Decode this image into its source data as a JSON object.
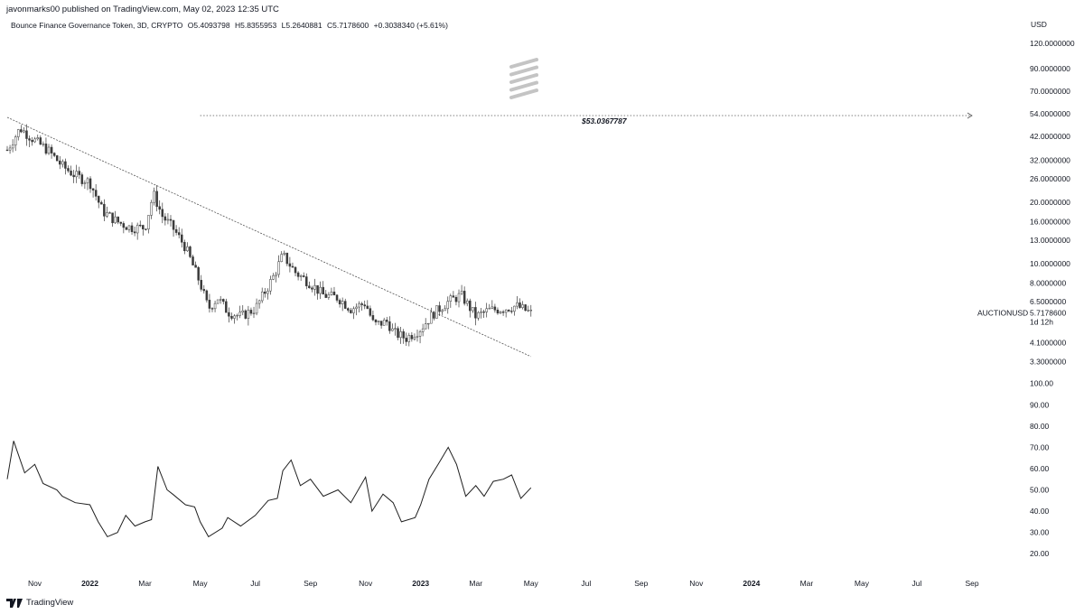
{
  "header": {
    "publisher_text": "javonmarks00 published on TradingView.com, May 02, 2023 12:35 UTC"
  },
  "symbol": {
    "name": "Bounce Finance Governance Token, 3D, CRYPTO",
    "open": "O5.4093798",
    "high": "H5.8355953",
    "low": "L5.2640881",
    "close": "C5.7178600",
    "change": "+0.3038340 (+5.61%)"
  },
  "currency": "USD",
  "brand": "TradingView",
  "colors": {
    "candles": "#3a3a3a",
    "rsi_line": "#1f1f1f",
    "trendline": "#555555",
    "watermark": "#c4c4c4"
  },
  "chart_data": [
    {
      "type": "candlestick",
      "title": "Bounce Finance Governance Token, 3D, CRYPTO",
      "y_scale": "log",
      "ylim": [
        3.0,
        130.0
      ],
      "y_tick_labels": [
        "120.0000000",
        "90.0000000",
        "70.0000000",
        "54.0000000",
        "42.0000000",
        "32.0000000",
        "26.0000000",
        "20.0000000",
        "16.0000000",
        "13.0000000",
        "10.0000000",
        "8.0000000",
        "6.5000000",
        "4.1000000",
        "3.3000000"
      ],
      "y_ticks": [
        120,
        90,
        70,
        54,
        42,
        32,
        26,
        20,
        16,
        13,
        10,
        8,
        6.5,
        4.1,
        3.3
      ],
      "x_tick_labels": [
        "Nov",
        "2022",
        "Mar",
        "May",
        "Jul",
        "Sep",
        "Nov",
        "2023",
        "Mar",
        "May",
        "Jul",
        "Sep",
        "Nov",
        "2024",
        "Mar",
        "May",
        "Jul",
        "Sep"
      ],
      "x_ticks": [
        "2021-11",
        "2022-01",
        "2022-03",
        "2022-05",
        "2022-07",
        "2022-09",
        "2022-11",
        "2023-01",
        "2023-03",
        "2023-05",
        "2023-07",
        "2023-09",
        "2023-11",
        "2024-01",
        "2024-03",
        "2024-05",
        "2024-07",
        "2024-09"
      ],
      "last_price": {
        "symbol": "AUCTIONUSD",
        "value": "5.7178600",
        "countdown": "1d 12h"
      },
      "target_line": {
        "label": "$53.0367787",
        "value": 53.0367787,
        "from": "2022-05",
        "to": "2024-09"
      },
      "trendline": {
        "from": {
          "date": "2021-10",
          "value": 52
        },
        "to": {
          "date": "2023-05",
          "value": 3.5
        }
      },
      "closes": [
        {
          "date": "2021-10",
          "c": 36
        },
        {
          "date": "2021-10-15",
          "c": 46
        },
        {
          "date": "2021-11",
          "c": 40
        },
        {
          "date": "2021-11-15",
          "c": 36
        },
        {
          "date": "2021-12",
          "c": 30
        },
        {
          "date": "2021-12-15",
          "c": 27
        },
        {
          "date": "2022-01",
          "c": 25
        },
        {
          "date": "2022-01-15",
          "c": 18
        },
        {
          "date": "2022-02",
          "c": 16
        },
        {
          "date": "2022-02-15",
          "c": 15
        },
        {
          "date": "2022-03",
          "c": 15
        },
        {
          "date": "2022-03-10",
          "c": 22
        },
        {
          "date": "2022-03-20",
          "c": 17
        },
        {
          "date": "2022-04",
          "c": 15
        },
        {
          "date": "2022-04-15",
          "c": 12
        },
        {
          "date": "2022-05",
          "c": 8
        },
        {
          "date": "2022-05-10",
          "c": 6
        },
        {
          "date": "2022-05-20",
          "c": 6.8
        },
        {
          "date": "2022-06",
          "c": 5.8
        },
        {
          "date": "2022-06-15",
          "c": 5.5
        },
        {
          "date": "2022-07",
          "c": 6
        },
        {
          "date": "2022-07-20",
          "c": 8.5
        },
        {
          "date": "2022-08",
          "c": 11
        },
        {
          "date": "2022-08-15",
          "c": 9
        },
        {
          "date": "2022-09",
          "c": 8
        },
        {
          "date": "2022-09-15",
          "c": 7
        },
        {
          "date": "2022-10",
          "c": 6.8
        },
        {
          "date": "2022-10-15",
          "c": 6
        },
        {
          "date": "2022-11",
          "c": 6.4
        },
        {
          "date": "2022-11-10",
          "c": 5
        },
        {
          "date": "2022-11-25",
          "c": 5.2
        },
        {
          "date": "2022-12",
          "c": 4.6
        },
        {
          "date": "2022-12-15",
          "c": 4.3
        },
        {
          "date": "2023-01",
          "c": 4.8
        },
        {
          "date": "2023-01-15",
          "c": 5.7
        },
        {
          "date": "2023-02",
          "c": 6.5
        },
        {
          "date": "2023-02-15",
          "c": 7
        },
        {
          "date": "2023-03",
          "c": 5.5
        },
        {
          "date": "2023-03-15",
          "c": 5.9
        },
        {
          "date": "2023-04",
          "c": 6
        },
        {
          "date": "2023-04-15",
          "c": 6.2
        },
        {
          "date": "2023-05",
          "c": 5.72
        }
      ]
    },
    {
      "type": "line",
      "y_tick_labels": [
        "100.00",
        "90.00",
        "80.00",
        "70.00",
        "60.00",
        "50.00",
        "40.00",
        "30.00",
        "20.00"
      ],
      "y_ticks": [
        100,
        90,
        80,
        70,
        60,
        50,
        40,
        30,
        20
      ],
      "ylim": [
        15,
        102
      ],
      "series": [
        {
          "values": [
            {
              "date": "2021-10",
              "v": 55
            },
            {
              "date": "2021-10-08",
              "v": 73
            },
            {
              "date": "2021-10-20",
              "v": 58
            },
            {
              "date": "2021-11",
              "v": 62
            },
            {
              "date": "2021-11-10",
              "v": 53
            },
            {
              "date": "2021-11-25",
              "v": 50
            },
            {
              "date": "2021-12",
              "v": 47
            },
            {
              "date": "2021-12-15",
              "v": 44
            },
            {
              "date": "2022-01",
              "v": 43
            },
            {
              "date": "2022-01-10",
              "v": 35
            },
            {
              "date": "2022-01-20",
              "v": 28
            },
            {
              "date": "2022-02",
              "v": 30
            },
            {
              "date": "2022-02-10",
              "v": 38
            },
            {
              "date": "2022-02-20",
              "v": 33
            },
            {
              "date": "2022-03",
              "v": 35
            },
            {
              "date": "2022-03-08",
              "v": 36
            },
            {
              "date": "2022-03-15",
              "v": 61
            },
            {
              "date": "2022-03-25",
              "v": 50
            },
            {
              "date": "2022-04",
              "v": 48
            },
            {
              "date": "2022-04-15",
              "v": 43
            },
            {
              "date": "2022-04-25",
              "v": 42
            },
            {
              "date": "2022-05",
              "v": 35
            },
            {
              "date": "2022-05-10",
              "v": 28
            },
            {
              "date": "2022-05-25",
              "v": 32
            },
            {
              "date": "2022-06",
              "v": 37
            },
            {
              "date": "2022-06-15",
              "v": 33
            },
            {
              "date": "2022-07",
              "v": 38
            },
            {
              "date": "2022-07-15",
              "v": 45
            },
            {
              "date": "2022-07-25",
              "v": 46
            },
            {
              "date": "2022-08",
              "v": 59
            },
            {
              "date": "2022-08-10",
              "v": 64
            },
            {
              "date": "2022-08-20",
              "v": 52
            },
            {
              "date": "2022-09",
              "v": 55
            },
            {
              "date": "2022-09-15",
              "v": 47
            },
            {
              "date": "2022-10",
              "v": 50
            },
            {
              "date": "2022-10-15",
              "v": 44
            },
            {
              "date": "2022-11",
              "v": 56
            },
            {
              "date": "2022-11-08",
              "v": 40
            },
            {
              "date": "2022-11-20",
              "v": 48
            },
            {
              "date": "2022-12",
              "v": 44
            },
            {
              "date": "2022-12-10",
              "v": 35
            },
            {
              "date": "2022-12-25",
              "v": 37
            },
            {
              "date": "2023-01",
              "v": 43
            },
            {
              "date": "2023-01-10",
              "v": 55
            },
            {
              "date": "2023-01-20",
              "v": 62
            },
            {
              "date": "2023-02",
              "v": 70
            },
            {
              "date": "2023-02-10",
              "v": 62
            },
            {
              "date": "2023-02-20",
              "v": 47
            },
            {
              "date": "2023-03",
              "v": 52
            },
            {
              "date": "2023-03-10",
              "v": 47
            },
            {
              "date": "2023-03-20",
              "v": 54
            },
            {
              "date": "2023-04",
              "v": 55
            },
            {
              "date": "2023-04-10",
              "v": 57
            },
            {
              "date": "2023-04-20",
              "v": 46
            },
            {
              "date": "2023-05",
              "v": 51
            }
          ]
        }
      ]
    }
  ]
}
